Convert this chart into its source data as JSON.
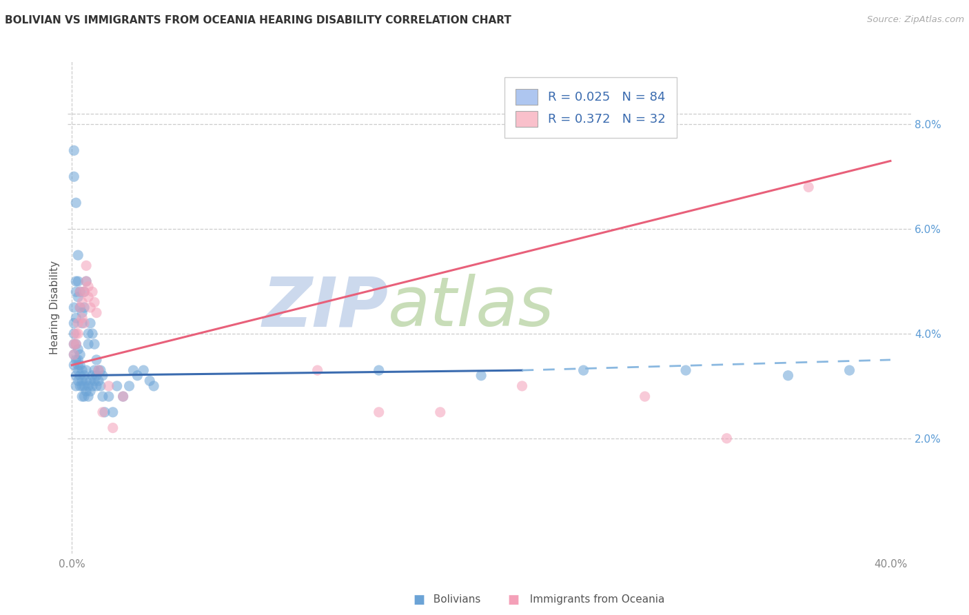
{
  "title": "BOLIVIAN VS IMMIGRANTS FROM OCEANIA HEARING DISABILITY CORRELATION CHART",
  "source": "Source: ZipAtlas.com",
  "ylabel": "Hearing Disability",
  "right_yticks": [
    "2.0%",
    "4.0%",
    "6.0%",
    "8.0%"
  ],
  "right_ytick_vals": [
    0.02,
    0.04,
    0.06,
    0.08
  ],
  "legend_color1": "#aec6f0",
  "legend_color2": "#f9c0cb",
  "watermark_zip": "ZIP",
  "watermark_atlas": "atlas",
  "watermark_color_zip": "#c5d8f0",
  "watermark_color_atlas": "#d4e8c2",
  "blue_color": "#6ba3d6",
  "pink_color": "#f4a0b8",
  "blue_line_color": "#3a6baf",
  "pink_line_color": "#e8607a",
  "dashed_color": "#8ab8e0",
  "blue_line": {
    "x": [
      0.0,
      0.22
    ],
    "y": [
      0.032,
      0.033
    ]
  },
  "pink_line": {
    "x": [
      0.0,
      0.4
    ],
    "y": [
      0.034,
      0.073
    ]
  },
  "dashed_line": {
    "x": [
      0.22,
      0.4
    ],
    "y": [
      0.033,
      0.035
    ]
  },
  "xlim": [
    -0.002,
    0.41
  ],
  "ylim": [
    -0.002,
    0.092
  ],
  "blue_pts_x": [
    0.001,
    0.001,
    0.001,
    0.001,
    0.002,
    0.002,
    0.002,
    0.002,
    0.003,
    0.003,
    0.003,
    0.003,
    0.003,
    0.004,
    0.004,
    0.004,
    0.004,
    0.005,
    0.005,
    0.005,
    0.005,
    0.006,
    0.006,
    0.006,
    0.007,
    0.007,
    0.007,
    0.008,
    0.008,
    0.009,
    0.009,
    0.01,
    0.01,
    0.011,
    0.011,
    0.012,
    0.012,
    0.013,
    0.014,
    0.015,
    0.001,
    0.001,
    0.002,
    0.002,
    0.002,
    0.003,
    0.003,
    0.004,
    0.004,
    0.005,
    0.005,
    0.006,
    0.006,
    0.007,
    0.008,
    0.008,
    0.009,
    0.01,
    0.011,
    0.012,
    0.013,
    0.014,
    0.015,
    0.016,
    0.018,
    0.02,
    0.022,
    0.025,
    0.028,
    0.03,
    0.032,
    0.035,
    0.038,
    0.04,
    0.15,
    0.2,
    0.25,
    0.3,
    0.35,
    0.38,
    0.001,
    0.001,
    0.002,
    0.003
  ],
  "blue_pts_y": [
    0.036,
    0.04,
    0.034,
    0.038,
    0.03,
    0.032,
    0.035,
    0.038,
    0.033,
    0.031,
    0.035,
    0.037,
    0.034,
    0.032,
    0.03,
    0.034,
    0.036,
    0.031,
    0.033,
    0.028,
    0.03,
    0.032,
    0.03,
    0.028,
    0.033,
    0.031,
    0.029,
    0.03,
    0.028,
    0.031,
    0.029,
    0.032,
    0.03,
    0.031,
    0.033,
    0.03,
    0.032,
    0.031,
    0.033,
    0.032,
    0.042,
    0.045,
    0.048,
    0.05,
    0.043,
    0.047,
    0.05,
    0.045,
    0.048,
    0.044,
    0.042,
    0.048,
    0.045,
    0.05,
    0.04,
    0.038,
    0.042,
    0.04,
    0.038,
    0.035,
    0.033,
    0.03,
    0.028,
    0.025,
    0.028,
    0.025,
    0.03,
    0.028,
    0.03,
    0.033,
    0.032,
    0.033,
    0.031,
    0.03,
    0.033,
    0.032,
    0.033,
    0.033,
    0.032,
    0.033,
    0.075,
    0.07,
    0.065,
    0.055
  ],
  "pink_pts_x": [
    0.001,
    0.001,
    0.002,
    0.002,
    0.003,
    0.003,
    0.004,
    0.004,
    0.005,
    0.005,
    0.006,
    0.006,
    0.007,
    0.007,
    0.008,
    0.008,
    0.009,
    0.01,
    0.011,
    0.012,
    0.013,
    0.015,
    0.018,
    0.02,
    0.025,
    0.12,
    0.15,
    0.18,
    0.22,
    0.28,
    0.32,
    0.36
  ],
  "pink_pts_y": [
    0.036,
    0.038,
    0.038,
    0.04,
    0.042,
    0.04,
    0.045,
    0.048,
    0.043,
    0.046,
    0.048,
    0.042,
    0.05,
    0.053,
    0.047,
    0.049,
    0.045,
    0.048,
    0.046,
    0.044,
    0.033,
    0.025,
    0.03,
    0.022,
    0.028,
    0.033,
    0.025,
    0.025,
    0.03,
    0.028,
    0.02,
    0.068
  ]
}
